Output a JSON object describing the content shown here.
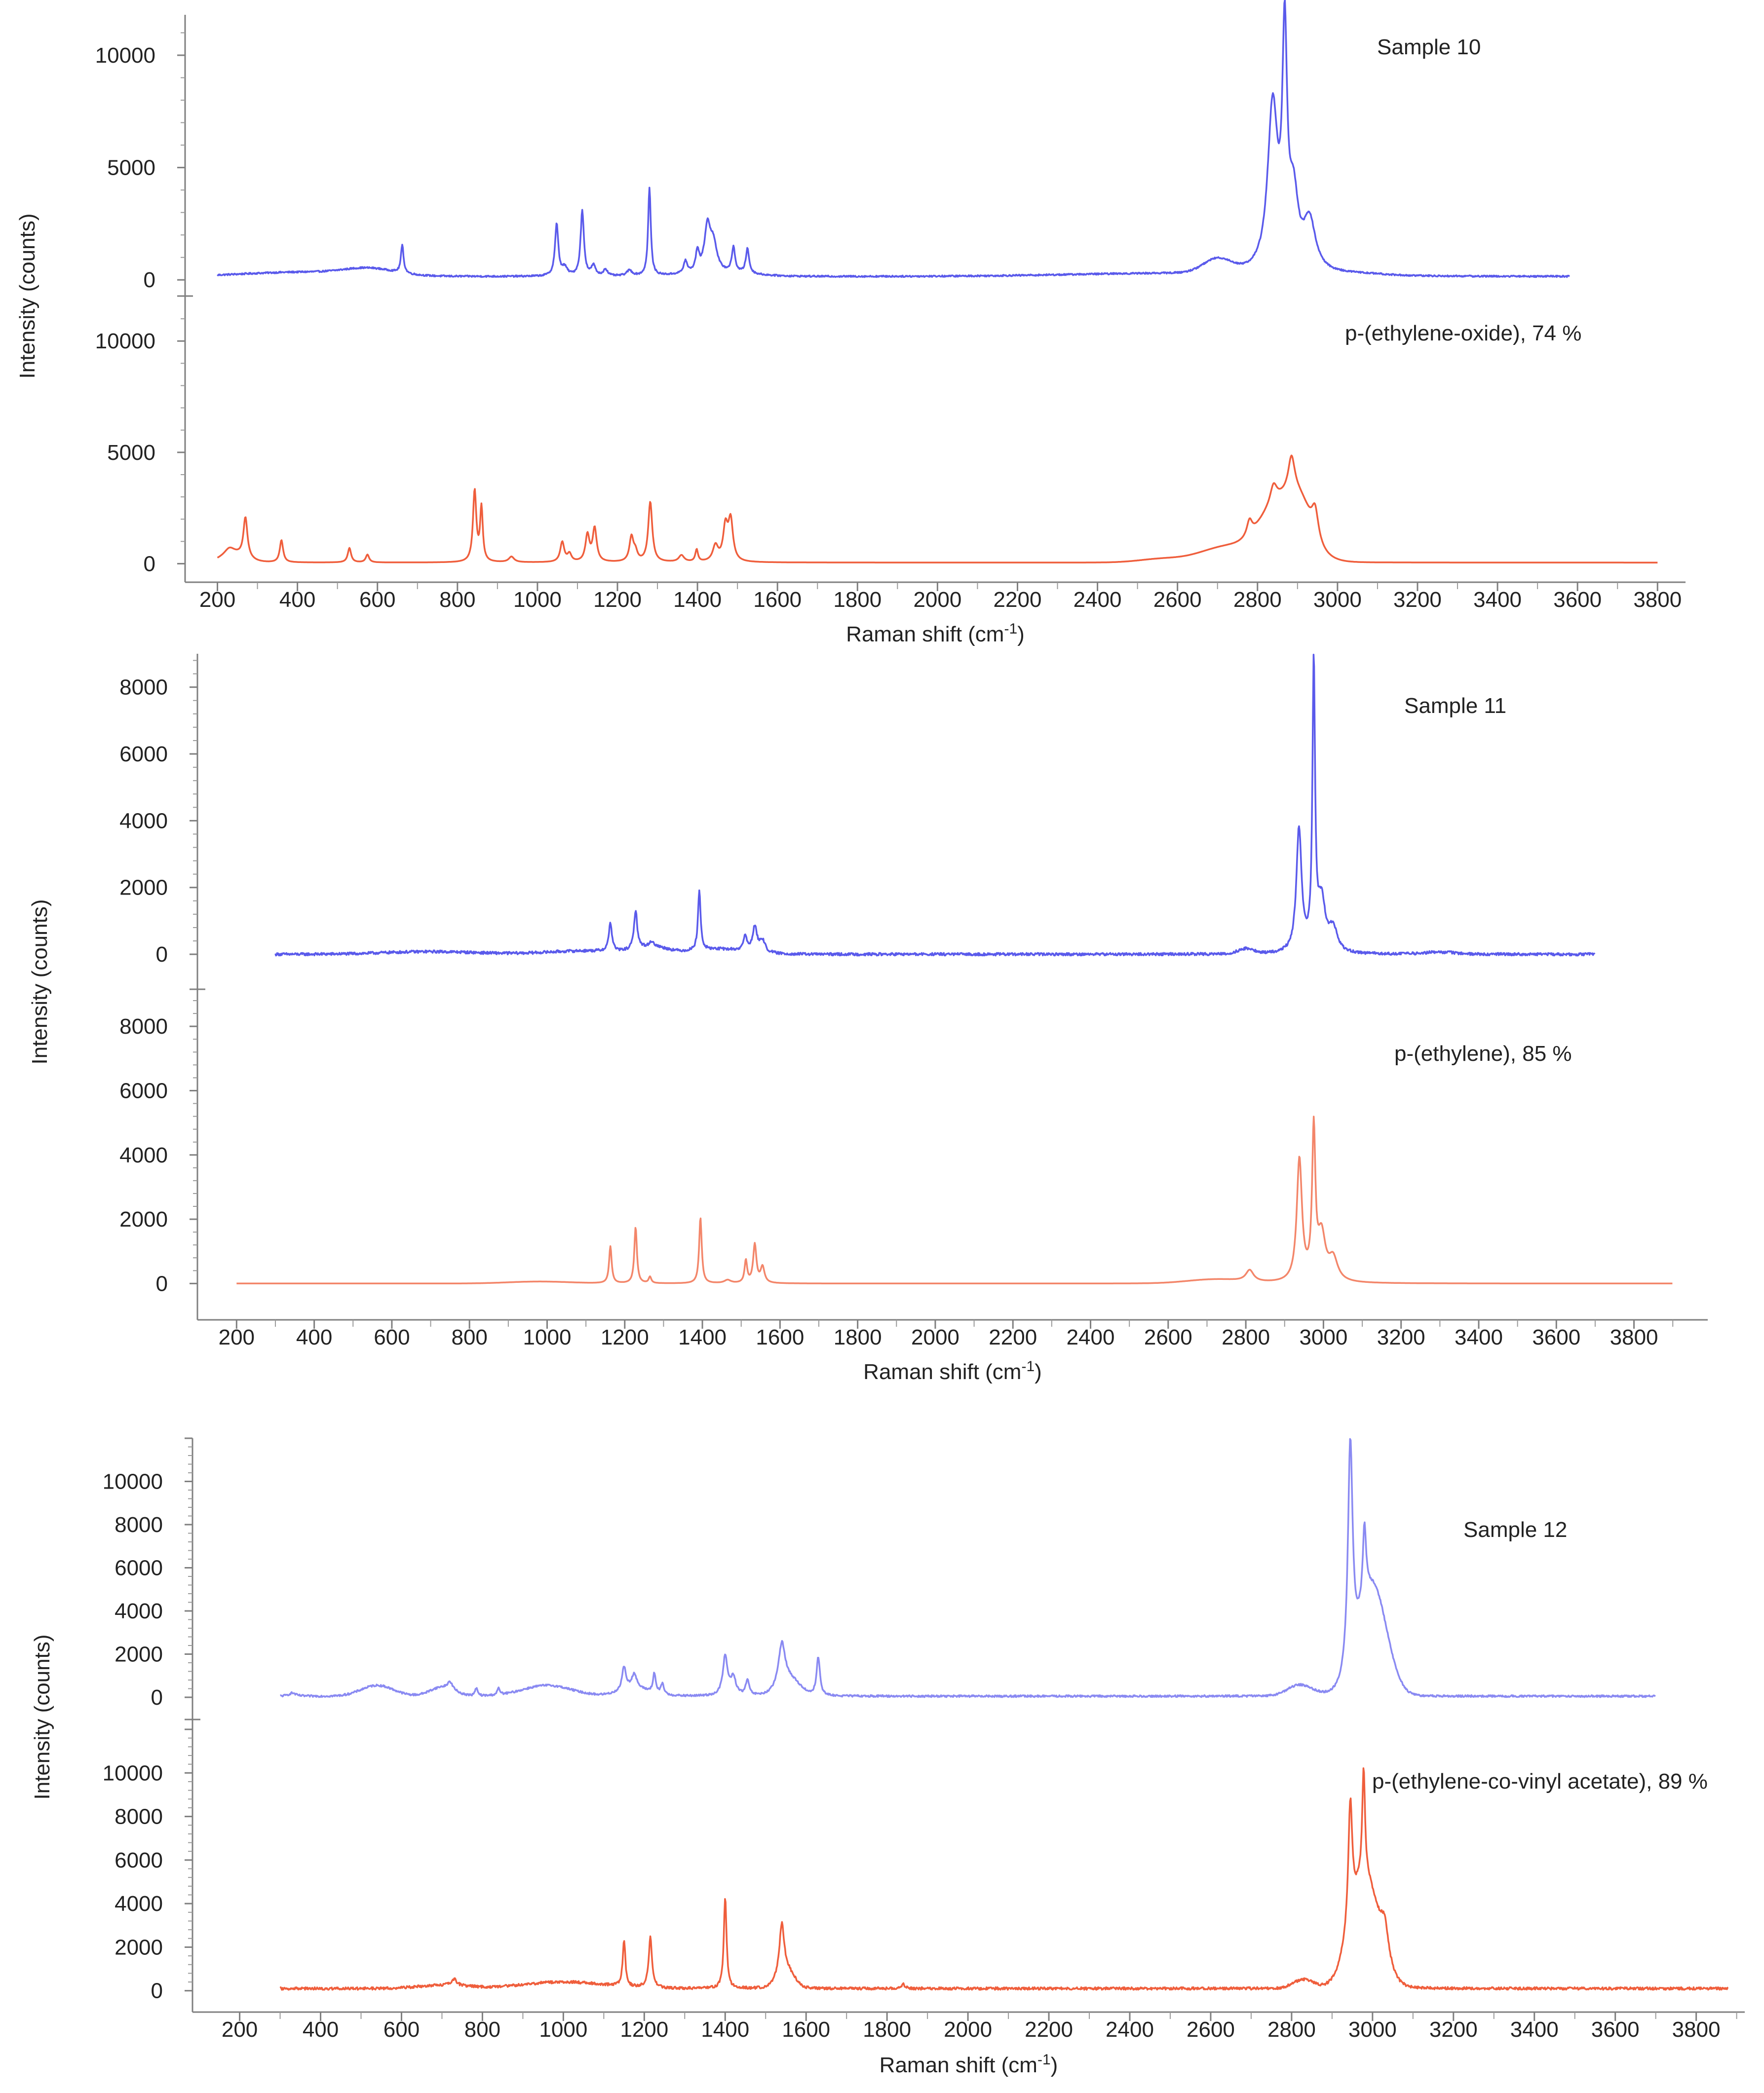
{
  "colors": {
    "blue": "#5a5aeb",
    "orange": "#ef5e3c",
    "blue_light": "#8a8af2",
    "orange_light": "#f3866a"
  },
  "chart_data": [
    {
      "type": "line",
      "id": "fig-a",
      "xlabel": "Raman shift (cm-1)",
      "ylabel": "Intensity (counts)",
      "xlim": [
        150,
        3870
      ],
      "xticks": [
        "200",
        "400",
        "600",
        "800",
        "1000",
        "1200",
        "1400",
        "1600",
        "1800",
        "2000",
        "2200",
        "2400",
        "2600",
        "2800",
        "3000",
        "3200",
        "3400",
        "3600",
        "3800"
      ],
      "panels": [
        {
          "label": "Sample 10",
          "name": "sample-10",
          "color": "#5a5aeb",
          "ylim": [
            -500,
            11800
          ],
          "yticks": [
            "0",
            "5000",
            "10000"
          ],
          "baseline": 150,
          "x_range": [
            200,
            3580
          ],
          "noise": 35,
          "broad": [
            [
              420,
              200,
              150
            ],
            [
              580,
              270,
              60
            ],
            [
              1450,
              150,
              80
            ],
            [
              2560,
              120,
              250
            ],
            [
              2700,
              600,
              35
            ],
            [
              3060,
              60,
              60
            ]
          ],
          "peaks": [
            [
              662,
              1250,
              4
            ],
            [
              1048,
              2300,
              5
            ],
            [
              1068,
              350,
              8
            ],
            [
              1112,
              2900,
              5
            ],
            [
              1140,
              450,
              6
            ],
            [
              1170,
              300,
              6
            ],
            [
              1230,
              250,
              8
            ],
            [
              1280,
              3900,
              4
            ],
            [
              1370,
              550,
              5
            ],
            [
              1400,
              900,
              5
            ],
            [
              1425,
              2000,
              9
            ],
            [
              1440,
              1200,
              10
            ],
            [
              1490,
              1100,
              5
            ],
            [
              1525,
              1100,
              5
            ],
            [
              2838,
              7300,
              15
            ],
            [
              2868,
              9800,
              7
            ],
            [
              2890,
              3000,
              14
            ],
            [
              2930,
              2200,
              18
            ]
          ]
        },
        {
          "label": "p-(ethylene-oxide), 74 %",
          "name": "p-ethylene-oxide",
          "color": "#ef5e3c",
          "ylim": [
            -500,
            11800
          ],
          "yticks": [
            "0",
            "5000",
            "10000"
          ],
          "baseline": 50,
          "x_range": [
            200,
            3800
          ],
          "noise": 0,
          "broad": [
            [
              240,
              350,
              30
            ],
            [
              2570,
              180,
              60
            ],
            [
              2690,
              450,
              50
            ],
            [
              2740,
              300,
              40
            ],
            [
              2860,
              2800,
              55
            ],
            [
              2910,
              1000,
              25
            ]
          ],
          "peaks": [
            [
              230,
              300,
              15
            ],
            [
              270,
              1800,
              6
            ],
            [
              360,
              1000,
              5
            ],
            [
              530,
              650,
              5
            ],
            [
              575,
              350,
              5
            ],
            [
              843,
              3200,
              5
            ],
            [
              860,
              2400,
              4
            ],
            [
              935,
              250,
              8
            ],
            [
              1062,
              900,
              6
            ],
            [
              1080,
              350,
              6
            ],
            [
              1125,
              1200,
              6
            ],
            [
              1143,
              1500,
              6
            ],
            [
              1235,
              1100,
              6
            ],
            [
              1245,
              400,
              6
            ],
            [
              1282,
              2700,
              6
            ],
            [
              1360,
              300,
              8
            ],
            [
              1398,
              550,
              4
            ],
            [
              1445,
              700,
              8
            ],
            [
              1470,
              1500,
              7
            ],
            [
              1483,
              1800,
              7
            ],
            [
              2780,
              700,
              8
            ],
            [
              2840,
              800,
              10
            ],
            [
              2885,
              1600,
              10
            ],
            [
              2944,
              1300,
              10
            ]
          ]
        }
      ]
    },
    {
      "type": "line",
      "id": "fig-b",
      "xlabel": "Raman shift (cm-1)",
      "ylabel": "Intensity (counts)",
      "xlim": [
        150,
        3990
      ],
      "xticks": [
        "200",
        "400",
        "600",
        "800",
        "1000",
        "1200",
        "1400",
        "1600",
        "1800",
        "2000",
        "2200",
        "2400",
        "2600",
        "2800",
        "3000",
        "3200",
        "3400",
        "3600",
        "3800"
      ],
      "panels": [
        {
          "label": "Sample 11",
          "name": "sample-11",
          "color": "#5a5aeb",
          "ylim": [
            -900,
            9000
          ],
          "yticks": [
            "0",
            "2000",
            "4000",
            "6000",
            "8000"
          ],
          "baseline": 0,
          "x_range": [
            300,
            3700
          ],
          "noise": 40,
          "broad": [
            [
              700,
              80,
              120
            ],
            [
              1100,
              100,
              100
            ],
            [
              1270,
              200,
              40
            ],
            [
              1440,
              150,
              70
            ],
            [
              2800,
              150,
              20
            ],
            [
              3300,
              60,
              40
            ]
          ],
          "peaks": [
            [
              1163,
              850,
              5
            ],
            [
              1228,
              1150,
              5
            ],
            [
              1270,
              150,
              6
            ],
            [
              1392,
              1800,
              4
            ],
            [
              1510,
              450,
              5
            ],
            [
              1535,
              750,
              7
            ],
            [
              1555,
              350,
              8
            ],
            [
              2937,
              3700,
              8
            ],
            [
              2975,
              8500,
              4
            ],
            [
              2995,
              1500,
              12
            ],
            [
              3025,
              700,
              12
            ]
          ]
        },
        {
          "label": "p-(ethylene), 85 %",
          "name": "p-ethylene",
          "color": "#f3866a",
          "ylim": [
            -900,
            9000
          ],
          "yticks": [
            "0",
            "2000",
            "4000",
            "6000",
            "8000"
          ],
          "baseline": 0,
          "x_range": [
            200,
            3900
          ],
          "noise": 0,
          "broad": [
            [
              980,
              60,
              80
            ],
            [
              2720,
              120,
              70
            ]
          ],
          "peaks": [
            [
              1163,
              1150,
              4
            ],
            [
              1228,
              1750,
              4
            ],
            [
              1265,
              200,
              4
            ],
            [
              1395,
              2050,
              4
            ],
            [
              1465,
              100,
              10
            ],
            [
              1512,
              700,
              4
            ],
            [
              1535,
              1200,
              5
            ],
            [
              1555,
              500,
              6
            ],
            [
              2810,
              350,
              12
            ],
            [
              2938,
              3800,
              8
            ],
            [
              2975,
              4600,
              5
            ],
            [
              2995,
              1400,
              12
            ],
            [
              3025,
              700,
              14
            ]
          ]
        }
      ]
    },
    {
      "type": "line",
      "id": "fig-c",
      "xlabel": "Raman shift (cm-1)",
      "ylabel": "Intensity (counts)",
      "xlim": [
        120,
        3920
      ],
      "xticks": [
        "200",
        "400",
        "600",
        "800",
        "1000",
        "1200",
        "1400",
        "1600",
        "1800",
        "2000",
        "2200",
        "2400",
        "2600",
        "2800",
        "3000",
        "3200",
        "3400",
        "3600",
        "3800"
      ],
      "panels": [
        {
          "label": "Sample 12",
          "name": "sample-12",
          "color": "#8a8af2",
          "ylim": [
            -800,
            12000
          ],
          "yticks": [
            "0",
            "2000",
            "4000",
            "6000",
            "8000",
            "10000"
          ],
          "baseline": 50,
          "x_range": [
            300,
            3700
          ],
          "noise": 45,
          "broad": [
            [
              540,
              500,
              40
            ],
            [
              700,
              400,
              30
            ],
            [
              960,
              500,
              60
            ],
            [
              1180,
              300,
              40
            ],
            [
              1560,
              700,
              25
            ],
            [
              2820,
              500,
              30
            ],
            [
              3000,
              5000,
              35
            ]
          ],
          "peaks": [
            [
              330,
              150,
              10
            ],
            [
              720,
              350,
              8
            ],
            [
              785,
              350,
              4
            ],
            [
              840,
              300,
              4
            ],
            [
              1150,
              1100,
              6
            ],
            [
              1175,
              700,
              8
            ],
            [
              1225,
              900,
              4
            ],
            [
              1245,
              500,
              4
            ],
            [
              1400,
              1800,
              7
            ],
            [
              1420,
              800,
              8
            ],
            [
              1455,
              700,
              5
            ],
            [
              1540,
              2000,
              10
            ],
            [
              1630,
              1800,
              5
            ],
            [
              2945,
              10500,
              7
            ],
            [
              2980,
              3400,
              5
            ]
          ]
        },
        {
          "label": "p-(ethylene-co-vinyl acetate), 89 %",
          "name": "p-ethylene-co-vinyl-acetate",
          "color": "#ef5e3c",
          "ylim": [
            -800,
            12000
          ],
          "yticks": [
            "0",
            "2000",
            "4000",
            "6000",
            "8000",
            "10000"
          ],
          "baseline": 100,
          "x_range": [
            300,
            3880
          ],
          "noise": 60,
          "broad": [
            [
              700,
              150,
              60
            ],
            [
              1000,
              300,
              100
            ],
            [
              1550,
              800,
              20
            ],
            [
              2830,
              400,
              25
            ],
            [
              2980,
              5000,
              35
            ]
          ],
          "peaks": [
            [
              730,
              300,
              8
            ],
            [
              1150,
              2100,
              4
            ],
            [
              1215,
              2300,
              5
            ],
            [
              1400,
              4200,
              4
            ],
            [
              1540,
              2300,
              7
            ],
            [
              1840,
              200,
              5
            ],
            [
              2945,
              5600,
              6
            ],
            [
              2978,
              5000,
              4
            ],
            [
              3030,
              1500,
              12
            ]
          ]
        }
      ]
    }
  ]
}
